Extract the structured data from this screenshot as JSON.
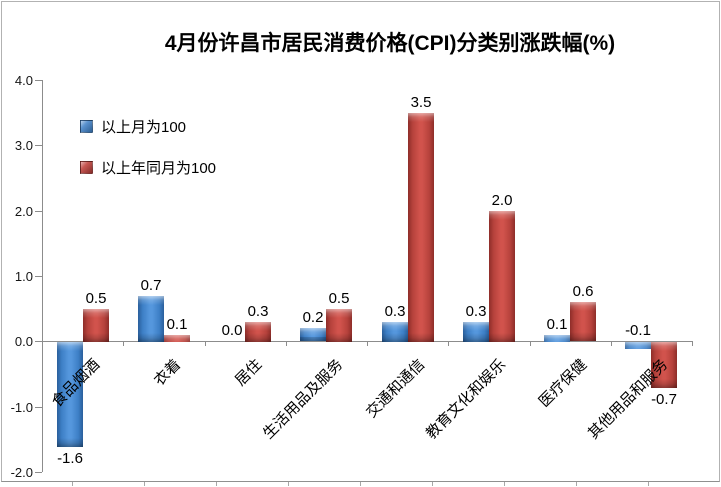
{
  "chart_data": {
    "type": "bar",
    "title": "4月份许昌市居民消费价格(CPI)分类别涨跌幅(%)",
    "categories": [
      "食品烟酒",
      "衣着",
      "居住",
      "生活用品及服务",
      "交通和通信",
      "教育文化和娱乐",
      "医疗保健",
      "其他用品和服务"
    ],
    "series": [
      {
        "name": "以上月为100",
        "color": "#3D7FC6",
        "values": [
          -1.6,
          0.7,
          0.0,
          0.2,
          0.3,
          0.3,
          0.1,
          -0.1
        ],
        "labels": [
          "-1.6",
          "0.7",
          "0.0",
          "0.2",
          "0.3",
          "0.3",
          "0.1",
          "-0.1"
        ],
        "label_placement": [
          "below",
          "above",
          "above",
          "above",
          "above",
          "above",
          "above",
          "above"
        ]
      },
      {
        "name": "以上年同月为100",
        "color": "#C0413C",
        "values": [
          0.5,
          0.1,
          0.3,
          0.5,
          3.5,
          2.0,
          0.6,
          -0.7
        ],
        "labels": [
          "0.5",
          "0.1",
          "0.3",
          "0.5",
          "3.5",
          "2.0",
          "0.6",
          "-0.7"
        ],
        "label_placement": [
          "above",
          "above",
          "above",
          "above",
          "above",
          "above",
          "above",
          "below"
        ]
      }
    ],
    "ylim": [
      -2.0,
      4.0
    ],
    "ytick_step": 1.0,
    "yticks": [
      "4.0",
      "3.0",
      "2.0",
      "1.0",
      "0.0",
      "-1.0",
      "-2.0"
    ],
    "grid": false,
    "legend_position": "top-left-inside",
    "axis_color": "#8c8c8c"
  }
}
